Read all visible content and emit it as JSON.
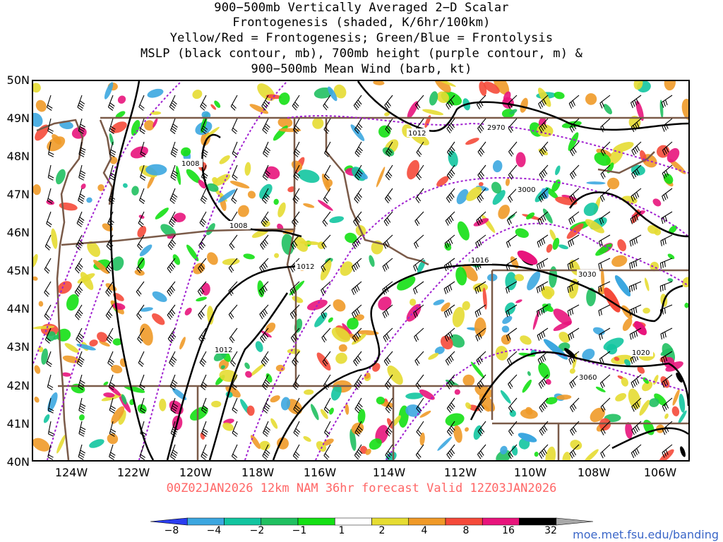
{
  "title_lines": [
    "900−500mb Vertically Averaged 2−D Scalar",
    "Frontogenesis (shaded, K/6hr/100km)",
    "Yellow/Red = Frontogenesis;  Green/Blue = Frontolysis",
    "MSLP (black contour, mb), 700mb height (purple contour, m) &",
    "900−500mb Mean Wind (barb, kt)"
  ],
  "lat_labels": [
    "50N",
    "49N",
    "48N",
    "47N",
    "46N",
    "45N",
    "44N",
    "43N",
    "42N",
    "41N",
    "40N"
  ],
  "lon_labels": [
    "124W",
    "122W",
    "120W",
    "118W",
    "116W",
    "114W",
    "112W",
    "110W",
    "108W",
    "106W"
  ],
  "valid_text": "00Z02JAN2026 12km NAM 36hr forecast Valid 12Z03JAN2026",
  "colorbar": {
    "labels": [
      "−8",
      "−4",
      "−2",
      "−1",
      "1",
      "2",
      "4",
      "8",
      "16",
      "32"
    ],
    "colors": [
      "#2a3df0",
      "#3ca7e0",
      "#12c5a0",
      "#20c060",
      "#14e014",
      "#ffffff",
      "#e6dc32",
      "#f09a28",
      "#f54a3a",
      "#e8147c",
      "#000000",
      "#a8a8a8"
    ]
  },
  "contour_labels": {
    "mslp": [
      "1008",
      "1008",
      "1012",
      "1012",
      "1012",
      "1016",
      "1020"
    ],
    "height": [
      "2970",
      "3000",
      "3030",
      "3060"
    ]
  },
  "colors": {
    "mslp": "#000000",
    "height": "#a020d0",
    "state_lines": "#7a5a48",
    "valid_text": "#ff6666",
    "credit_text": "#3a66c8"
  },
  "credit": "moe.met.fsu.edu/banding"
}
